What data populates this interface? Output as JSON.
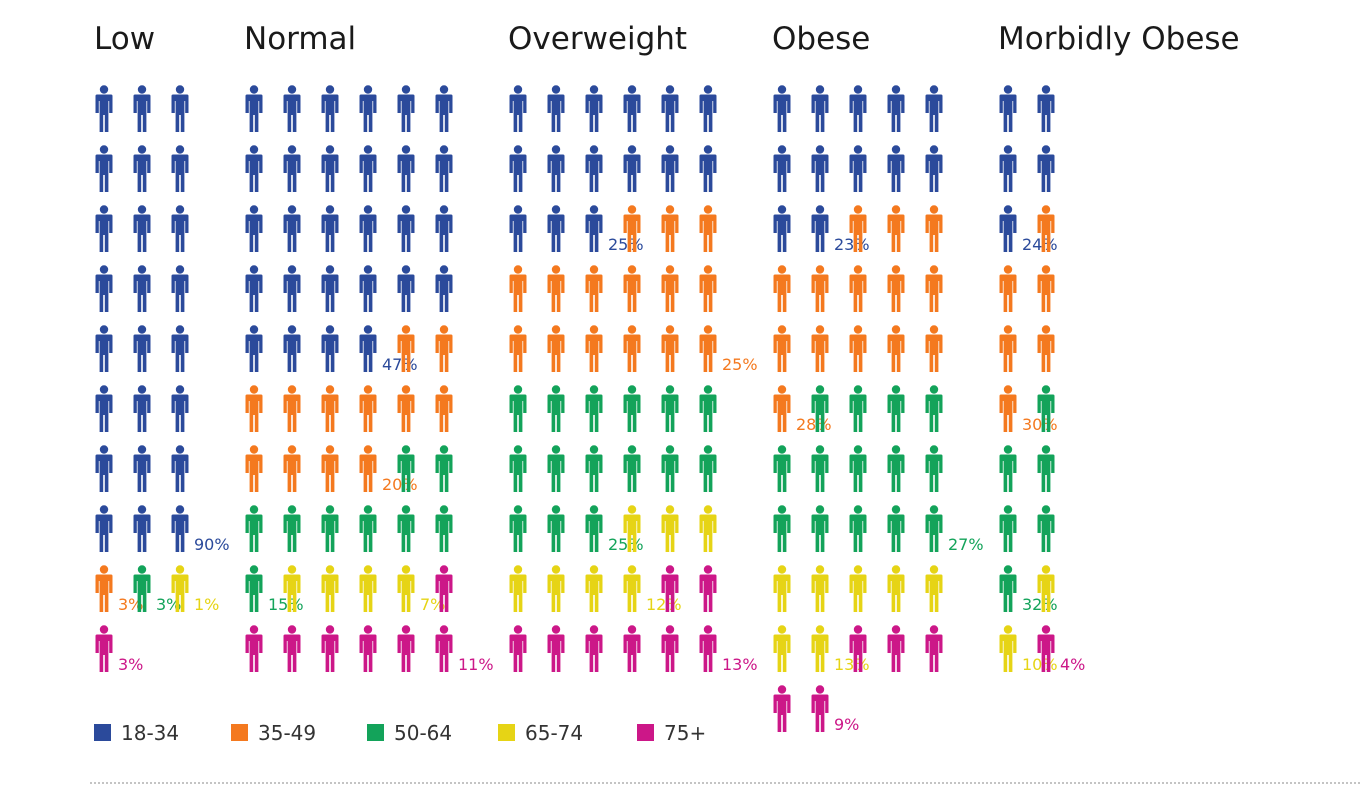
{
  "chart_data": {
    "type": "pictograph",
    "colors": {
      "18-34": "#2b4a9b",
      "35-49": "#f4791f",
      "50-64": "#13a35a",
      "65-74": "#e6d415",
      "75+": "#cc1788"
    },
    "legend": [
      "18-34",
      "35-49",
      "50-64",
      "65-74",
      "75+"
    ],
    "groups": [
      {
        "title": "Low",
        "segments": [
          {
            "age": "18-34",
            "value": 90,
            "label": "90%"
          },
          {
            "age": "35-49",
            "value": 3,
            "label": "3%"
          },
          {
            "age": "50-64",
            "value": 3,
            "label": "3%"
          },
          {
            "age": "65-74",
            "value": 1,
            "label": "1%"
          },
          {
            "age": "75+",
            "value": 3,
            "label": "3%"
          }
        ]
      },
      {
        "title": "Normal",
        "segments": [
          {
            "age": "18-34",
            "value": 47,
            "label": "47%"
          },
          {
            "age": "35-49",
            "value": 20,
            "label": "20%"
          },
          {
            "age": "50-64",
            "value": 15,
            "label": "15%"
          },
          {
            "age": "65-74",
            "value": 7,
            "label": "7%"
          },
          {
            "age": "75+",
            "value": 11,
            "label": "11%"
          }
        ]
      },
      {
        "title": "Overweight",
        "segments": [
          {
            "age": "18-34",
            "value": 25,
            "label": "25%"
          },
          {
            "age": "35-49",
            "value": 25,
            "label": "25%"
          },
          {
            "age": "50-64",
            "value": 25,
            "label": "25%"
          },
          {
            "age": "65-74",
            "value": 12,
            "label": "12%"
          },
          {
            "age": "75+",
            "value": 13,
            "label": "13%"
          }
        ]
      },
      {
        "title": "Obese",
        "segments": [
          {
            "age": "18-34",
            "value": 23,
            "label": "23%"
          },
          {
            "age": "35-49",
            "value": 28,
            "label": "28%"
          },
          {
            "age": "50-64",
            "value": 27,
            "label": "27%"
          },
          {
            "age": "65-74",
            "value": 13,
            "label": "13%"
          },
          {
            "age": "75+",
            "value": 9,
            "label": "9%"
          }
        ]
      },
      {
        "title": "Morbidly Obese",
        "segments": [
          {
            "age": "18-34",
            "value": 24,
            "label": "24%"
          },
          {
            "age": "35-49",
            "value": 30,
            "label": "30%"
          },
          {
            "age": "50-64",
            "value": 32,
            "label": "32%"
          },
          {
            "age": "65-74",
            "value": 10,
            "label": "10%"
          },
          {
            "age": "75+",
            "value": 4,
            "label": "4%"
          }
        ]
      }
    ]
  }
}
